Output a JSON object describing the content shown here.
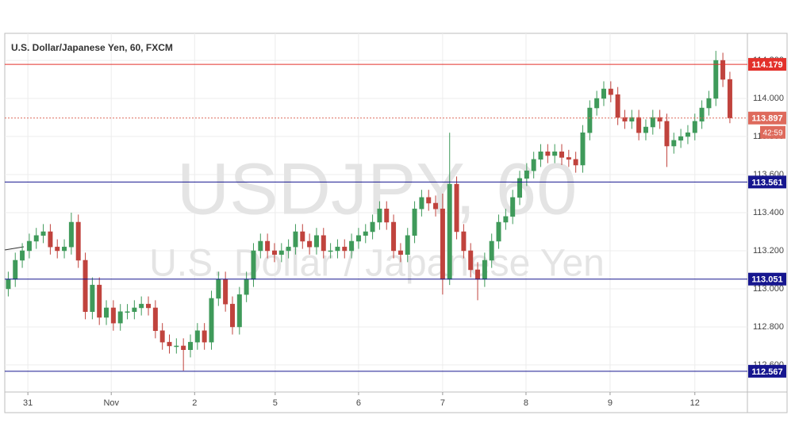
{
  "chart_data": {
    "type": "candlestick",
    "title": "U.S. Dollar/Japanese Yen, 60, FXCM",
    "watermark": "USDJPY, 60",
    "watermark_subtitle": "U.S. Dollar / Japanese Yen",
    "countdown": "42:59",
    "up_color": "#3f9a5a",
    "down_color": "#c0433d",
    "grid": true,
    "xlim": [
      -0.5,
      105.5
    ],
    "xticks": [
      {
        "value": 2.8,
        "label": "31"
      },
      {
        "value": 14.7,
        "label": "Nov"
      },
      {
        "value": 26.6,
        "label": "2"
      },
      {
        "value": 38.1,
        "label": "5"
      },
      {
        "value": 50,
        "label": "6"
      },
      {
        "value": 62,
        "label": "7"
      },
      {
        "value": 73.9,
        "label": "8"
      },
      {
        "value": 85.9,
        "label": "9"
      },
      {
        "value": 98,
        "label": "12"
      }
    ],
    "ylim": [
      112.458,
      114.342
    ],
    "yticks": [
      {
        "value": 112.6,
        "label": "112.600"
      },
      {
        "value": 112.8,
        "label": "112.800"
      },
      {
        "value": 113,
        "label": "113.000"
      },
      {
        "value": 113.2,
        "label": "113.200"
      },
      {
        "value": 113.4,
        "label": "113.400"
      },
      {
        "value": 113.6,
        "label": "113.600"
      },
      {
        "value": 113.8,
        "label": "113.800"
      },
      {
        "value": 114,
        "label": "114.000"
      },
      {
        "value": 114.2,
        "label": "114.200"
      }
    ],
    "levels": [
      {
        "value": 114.179,
        "color": "#e3312b"
      },
      {
        "value": 113.561,
        "color": "#16168f"
      },
      {
        "value": 113.051,
        "color": "#16168f"
      },
      {
        "value": 112.567,
        "color": "#16168f"
      }
    ],
    "last_price": {
      "value": 113.897,
      "color": "#de6a5c"
    },
    "open": [
      113.0,
      113.05,
      113.15,
      113.2,
      113.25,
      113.28,
      113.3,
      113.22,
      113.2,
      113.22,
      113.35,
      113.15,
      112.88,
      113.02,
      112.85,
      112.9,
      112.82,
      112.88,
      112.88,
      112.9,
      112.92,
      112.9,
      112.78,
      112.72,
      112.7,
      112.7,
      112.68,
      112.72,
      112.78,
      112.72,
      112.95,
      113.05,
      112.92,
      112.8,
      112.97,
      113.05,
      113.2,
      113.25,
      113.2,
      113.18,
      113.2,
      113.22,
      113.3,
      113.25,
      113.22,
      113.28,
      113.2,
      113.2,
      113.22,
      113.2,
      113.25,
      113.28,
      113.3,
      113.35,
      113.42,
      113.35,
      113.2,
      113.18,
      113.28,
      113.42,
      113.48,
      113.45,
      113.42,
      113.05,
      113.55,
      113.3,
      113.2,
      113.1,
      113.05,
      113.15,
      113.25,
      113.35,
      113.38,
      113.48,
      113.58,
      113.62,
      113.68,
      113.72,
      113.7,
      113.72,
      113.69,
      113.68,
      113.65,
      113.82,
      113.95,
      114.0,
      114.05,
      114.02,
      113.9,
      113.88,
      113.9,
      113.82,
      113.85,
      113.9,
      113.88,
      113.75,
      113.78,
      113.8,
      113.82,
      113.88,
      113.95,
      114.0,
      114.2,
      114.1
    ],
    "high": [
      113.09,
      113.19,
      113.24,
      113.29,
      113.32,
      113.34,
      113.34,
      113.26,
      113.26,
      113.4,
      113.39,
      113.19,
      113.06,
      113.06,
      112.94,
      112.94,
      112.92,
      112.92,
      112.94,
      112.96,
      112.96,
      112.94,
      112.82,
      112.76,
      112.74,
      112.74,
      112.76,
      112.82,
      112.82,
      112.99,
      113.09,
      113.09,
      112.96,
      113.01,
      113.09,
      113.24,
      113.29,
      113.29,
      113.24,
      113.24,
      113.26,
      113.34,
      113.34,
      113.29,
      113.32,
      113.32,
      113.24,
      113.26,
      113.26,
      113.29,
      113.32,
      113.34,
      113.39,
      113.46,
      113.46,
      113.39,
      113.24,
      113.32,
      113.46,
      113.52,
      113.52,
      113.49,
      113.5,
      113.82,
      113.59,
      113.34,
      113.24,
      113.14,
      113.19,
      113.29,
      113.39,
      113.42,
      113.52,
      113.62,
      113.66,
      113.72,
      113.76,
      113.76,
      113.76,
      113.76,
      113.73,
      113.72,
      113.86,
      113.99,
      114.04,
      114.09,
      114.09,
      114.06,
      113.94,
      113.94,
      113.94,
      113.89,
      113.94,
      113.94,
      113.92,
      113.82,
      113.84,
      113.86,
      113.92,
      113.99,
      114.04,
      114.25,
      114.24,
      114.14
    ],
    "low": [
      112.96,
      113.01,
      113.11,
      113.16,
      113.21,
      113.24,
      113.18,
      113.16,
      113.16,
      113.18,
      113.11,
      112.84,
      112.84,
      112.81,
      112.81,
      112.78,
      112.78,
      112.84,
      112.84,
      112.86,
      112.86,
      112.74,
      112.68,
      112.66,
      112.66,
      112.57,
      112.64,
      112.68,
      112.68,
      112.68,
      112.91,
      112.88,
      112.76,
      112.76,
      112.93,
      113.01,
      113.16,
      113.16,
      113.14,
      113.14,
      113.16,
      113.18,
      113.21,
      113.18,
      113.18,
      113.16,
      113.16,
      113.16,
      113.16,
      113.16,
      113.21,
      113.24,
      113.26,
      113.31,
      113.31,
      113.16,
      113.14,
      113.14,
      113.24,
      113.38,
      113.41,
      113.38,
      112.97,
      113.02,
      113.26,
      113.16,
      113.06,
      112.94,
      113.01,
      113.11,
      113.21,
      113.31,
      113.34,
      113.44,
      113.54,
      113.58,
      113.64,
      113.66,
      113.66,
      113.65,
      113.64,
      113.61,
      113.61,
      113.78,
      113.91,
      113.96,
      113.98,
      113.86,
      113.84,
      113.84,
      113.78,
      113.78,
      113.81,
      113.84,
      113.64,
      113.71,
      113.74,
      113.76,
      113.78,
      113.84,
      113.91,
      113.96,
      114.06,
      113.87
    ],
    "close": [
      113.05,
      113.15,
      113.2,
      113.25,
      113.28,
      113.3,
      113.22,
      113.2,
      113.22,
      113.35,
      113.15,
      112.88,
      113.02,
      112.85,
      112.9,
      112.82,
      112.88,
      112.88,
      112.9,
      112.92,
      112.9,
      112.78,
      112.72,
      112.7,
      112.7,
      112.68,
      112.72,
      112.78,
      112.72,
      112.95,
      113.05,
      112.92,
      112.8,
      112.97,
      113.05,
      113.2,
      113.25,
      113.2,
      113.18,
      113.2,
      113.22,
      113.3,
      113.25,
      113.22,
      113.28,
      113.2,
      113.2,
      113.22,
      113.2,
      113.25,
      113.28,
      113.3,
      113.35,
      113.42,
      113.35,
      113.2,
      113.18,
      113.28,
      113.42,
      113.48,
      113.45,
      113.42,
      113.05,
      113.55,
      113.3,
      113.2,
      113.1,
      113.05,
      113.15,
      113.25,
      113.35,
      113.38,
      113.48,
      113.58,
      113.62,
      113.68,
      113.72,
      113.7,
      113.72,
      113.69,
      113.68,
      113.65,
      113.82,
      113.95,
      114.0,
      114.05,
      114.02,
      113.9,
      113.88,
      113.9,
      113.82,
      113.85,
      113.9,
      113.88,
      113.75,
      113.78,
      113.8,
      113.82,
      113.88,
      113.95,
      114.0,
      114.2,
      114.1,
      113.897
    ]
  }
}
